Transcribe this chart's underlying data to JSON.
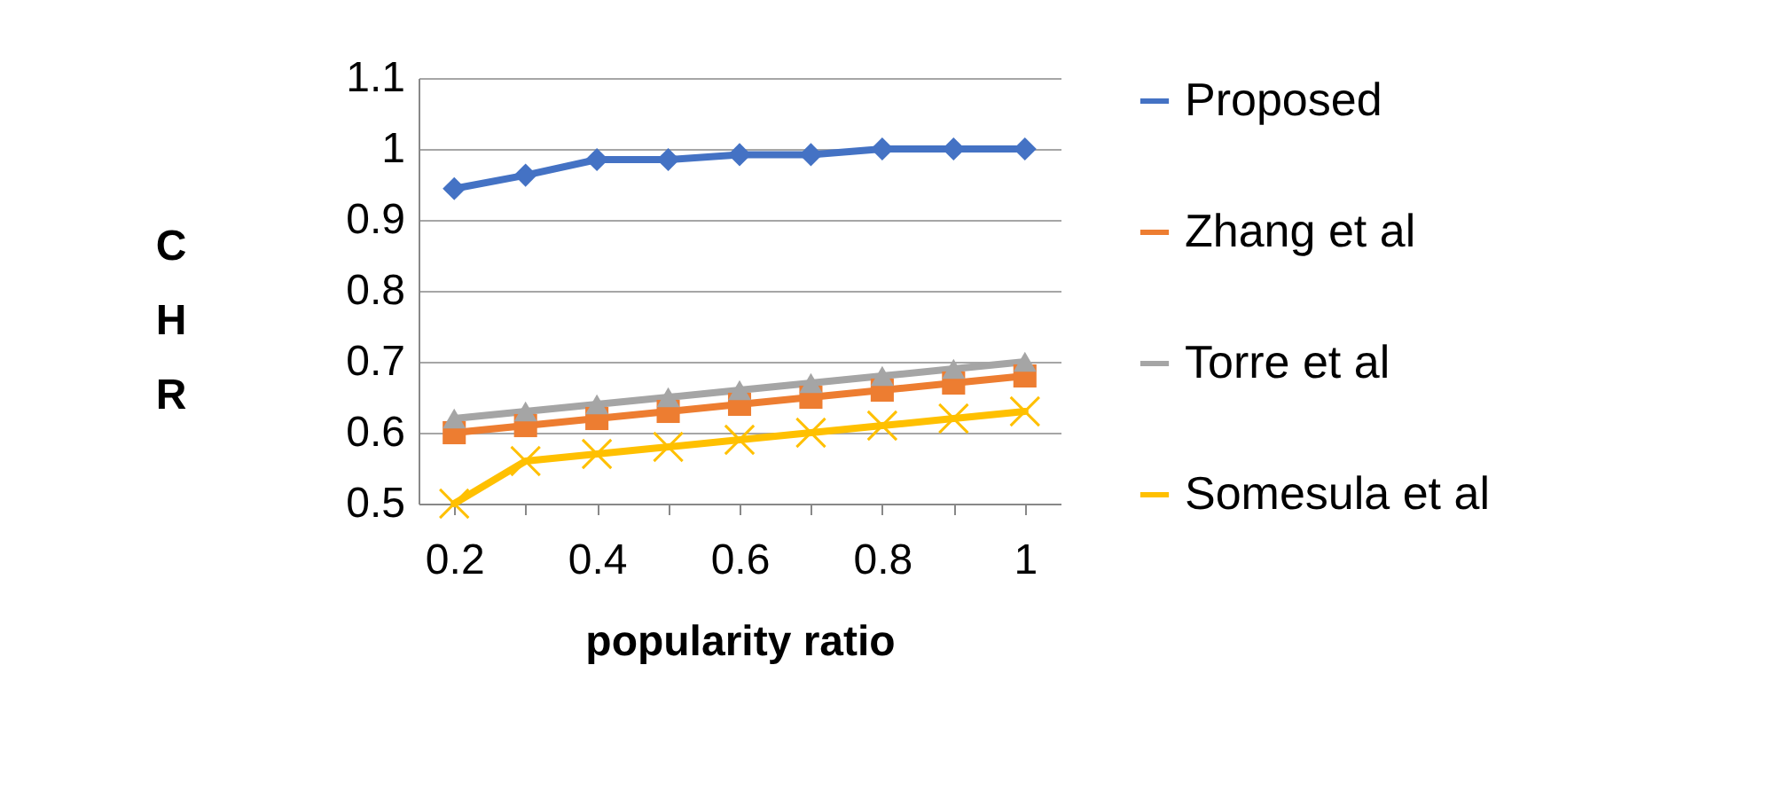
{
  "chart_data": {
    "type": "line",
    "xlabel": "popularity ratio",
    "ylabel": "CHR",
    "categories": [
      "0.2",
      null,
      "0.4",
      null,
      "0.6",
      null,
      "0.8",
      null,
      "1"
    ],
    "series": [
      {
        "name": "Proposed",
        "color": "#4472c4",
        "marker": "diamond",
        "values": [
          0.944,
          0.963,
          0.985,
          0.985,
          0.992,
          0.992,
          1,
          1,
          1
        ]
      },
      {
        "name": "Zhang et al",
        "color": "#ed7d31",
        "marker": "square",
        "values": [
          0.6,
          0.61,
          0.62,
          0.63,
          0.64,
          0.65,
          0.66,
          0.67,
          0.68
        ]
      },
      {
        "name": "Torre et al",
        "color": "#a5a5a5",
        "marker": "triangle",
        "values": [
          0.62,
          0.63,
          0.64,
          0.65,
          0.66,
          0.67,
          0.68,
          0.69,
          0.7
        ]
      },
      {
        "name": "Somesula et al",
        "color": "#ffc000",
        "marker": "cross",
        "values": [
          0.5,
          0.56,
          0.57,
          0.58,
          0.59,
          0.6,
          0.61,
          0.62,
          0.63
        ]
      }
    ],
    "ylim": [
      0.5,
      1.1
    ],
    "yticks": [
      0.5,
      0.6,
      0.7,
      0.8,
      0.9,
      1,
      1.1
    ],
    "grid": "y",
    "legend": "right"
  }
}
